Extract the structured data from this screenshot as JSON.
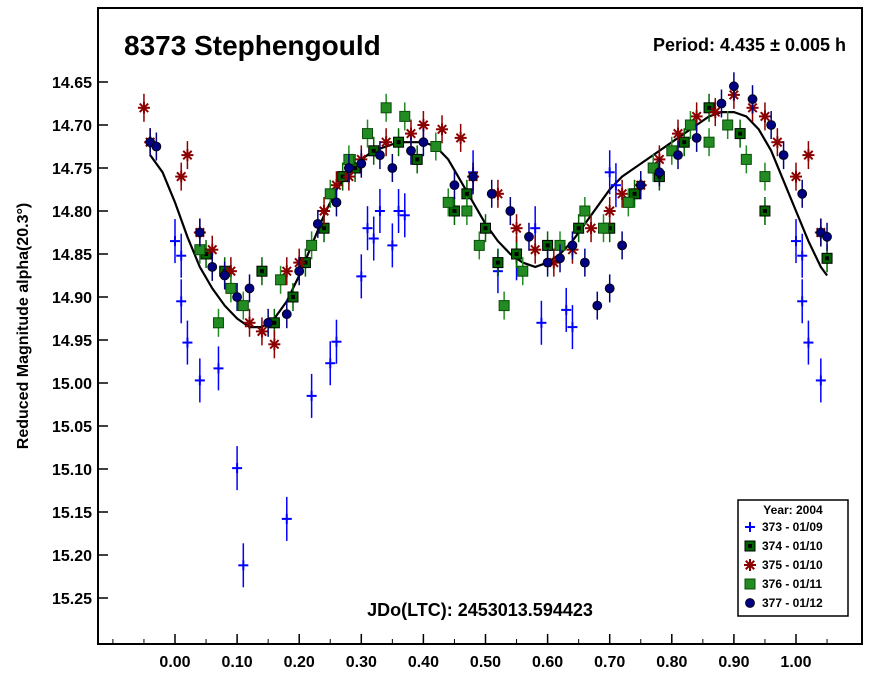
{
  "chart_data": {
    "type": "scatter",
    "title": "8373 Stephengould",
    "period_label": "Period: 4.435 ± 0.005 h",
    "epoch_label": "JDo(LTC): 2453013.594423",
    "ylabel": "Reduced Magnitude alpha(20.3°)",
    "xlabel": "",
    "xlim": [
      -0.12,
      1.1
    ],
    "ylim": [
      15.3,
      14.6
    ],
    "y_inverted": true,
    "x_ticks": [
      "0.00",
      "0.10",
      "0.20",
      "0.30",
      "0.40",
      "0.50",
      "0.60",
      "0.70",
      "0.80",
      "0.90",
      "1.00"
    ],
    "y_ticks": [
      "14.65",
      "14.70",
      "14.75",
      "14.80",
      "14.85",
      "14.90",
      "14.95",
      "15.00",
      "15.05",
      "15.10",
      "15.15",
      "15.20",
      "15.25"
    ],
    "legend": {
      "title": "Year: 2004",
      "position": "bottom-right",
      "entries": [
        {
          "label": "373 - 01/09",
          "color": "#0000ff",
          "marker": "plus"
        },
        {
          "label": "374 - 01/10",
          "color": "#006600",
          "marker": "filled-square-dark"
        },
        {
          "label": "375 - 01/10",
          "color": "#8b0000",
          "marker": "asterisk"
        },
        {
          "label": "376 - 01/11",
          "color": "#228b22",
          "marker": "square"
        },
        {
          "label": "377 - 01/12",
          "color": "#000080",
          "marker": "circle"
        }
      ]
    },
    "series": [
      {
        "name": "373 - 01/09",
        "color": "#0000ff",
        "marker": "plus",
        "points": [
          [
            0.0,
            14.835
          ],
          [
            0.01,
            14.905
          ],
          [
            0.01,
            14.852
          ],
          [
            0.02,
            14.953
          ],
          [
            0.04,
            14.997
          ],
          [
            0.07,
            14.983
          ],
          [
            0.1,
            15.099
          ],
          [
            0.11,
            15.212
          ],
          [
            0.18,
            15.158
          ],
          [
            0.22,
            15.015
          ],
          [
            0.25,
            14.977
          ],
          [
            0.26,
            14.952
          ],
          [
            0.3,
            14.876
          ],
          [
            0.31,
            14.82
          ],
          [
            0.32,
            14.832
          ],
          [
            0.33,
            14.8
          ],
          [
            0.35,
            14.84
          ],
          [
            0.36,
            14.8
          ],
          [
            0.37,
            14.805
          ],
          [
            0.48,
            14.755
          ],
          [
            0.52,
            14.87
          ],
          [
            0.55,
            14.855
          ],
          [
            0.58,
            14.82
          ],
          [
            0.59,
            14.93
          ],
          [
            0.63,
            14.915
          ],
          [
            0.64,
            14.935
          ],
          [
            0.7,
            14.755
          ],
          [
            0.71,
            14.77
          ],
          [
            1.0,
            14.835
          ],
          [
            1.01,
            14.905
          ],
          [
            1.01,
            14.852
          ],
          [
            1.02,
            14.953
          ],
          [
            1.04,
            14.997
          ]
        ]
      },
      {
        "name": "374 - 01/10",
        "color": "#006600",
        "marker": "filled-square-dark",
        "points": [
          [
            0.05,
            14.85
          ],
          [
            0.08,
            14.87
          ],
          [
            0.14,
            14.87
          ],
          [
            0.16,
            14.93
          ],
          [
            0.19,
            14.9
          ],
          [
            0.21,
            14.86
          ],
          [
            0.24,
            14.82
          ],
          [
            0.27,
            14.76
          ],
          [
            0.29,
            14.75
          ],
          [
            0.32,
            14.73
          ],
          [
            0.36,
            14.72
          ],
          [
            0.39,
            14.74
          ],
          [
            0.45,
            14.8
          ],
          [
            0.47,
            14.78
          ],
          [
            0.5,
            14.82
          ],
          [
            0.52,
            14.86
          ],
          [
            0.55,
            14.85
          ],
          [
            0.6,
            14.84
          ],
          [
            0.65,
            14.82
          ],
          [
            0.7,
            14.82
          ],
          [
            0.74,
            14.78
          ],
          [
            0.78,
            14.76
          ],
          [
            0.82,
            14.72
          ],
          [
            0.86,
            14.68
          ],
          [
            0.91,
            14.71
          ],
          [
            0.95,
            14.8
          ],
          [
            1.05,
            14.855
          ]
        ]
      },
      {
        "name": "375 - 01/10",
        "color": "#8b0000",
        "marker": "asterisk",
        "points": [
          [
            -0.05,
            14.68
          ],
          [
            -0.04,
            14.72
          ],
          [
            0.01,
            14.76
          ],
          [
            0.02,
            14.735
          ],
          [
            0.04,
            14.825
          ],
          [
            0.06,
            14.845
          ],
          [
            0.09,
            14.87
          ],
          [
            0.12,
            14.93
          ],
          [
            0.14,
            14.94
          ],
          [
            0.16,
            14.955
          ],
          [
            0.18,
            14.87
          ],
          [
            0.2,
            14.86
          ],
          [
            0.24,
            14.8
          ],
          [
            0.26,
            14.77
          ],
          [
            0.28,
            14.76
          ],
          [
            0.3,
            14.74
          ],
          [
            0.34,
            14.72
          ],
          [
            0.38,
            14.71
          ],
          [
            0.4,
            14.7
          ],
          [
            0.43,
            14.705
          ],
          [
            0.46,
            14.715
          ],
          [
            0.48,
            14.76
          ],
          [
            0.52,
            14.78
          ],
          [
            0.55,
            14.82
          ],
          [
            0.58,
            14.845
          ],
          [
            0.61,
            14.86
          ],
          [
            0.64,
            14.845
          ],
          [
            0.67,
            14.82
          ],
          [
            0.7,
            14.8
          ],
          [
            0.72,
            14.78
          ],
          [
            0.75,
            14.77
          ],
          [
            0.78,
            14.74
          ],
          [
            0.81,
            14.71
          ],
          [
            0.84,
            14.69
          ],
          [
            0.87,
            14.685
          ],
          [
            0.9,
            14.665
          ],
          [
            0.93,
            14.68
          ],
          [
            0.95,
            14.69
          ],
          [
            0.97,
            14.72
          ],
          [
            1.0,
            14.76
          ],
          [
            1.02,
            14.735
          ],
          [
            1.04,
            14.825
          ]
        ]
      },
      {
        "name": "376 - 01/11",
        "color": "#228b22",
        "marker": "square",
        "points": [
          [
            0.04,
            14.845
          ],
          [
            0.07,
            14.93
          ],
          [
            0.09,
            14.89
          ],
          [
            0.11,
            14.91
          ],
          [
            0.17,
            14.88
          ],
          [
            0.22,
            14.84
          ],
          [
            0.25,
            14.78
          ],
          [
            0.28,
            14.74
          ],
          [
            0.31,
            14.71
          ],
          [
            0.34,
            14.68
          ],
          [
            0.37,
            14.69
          ],
          [
            0.42,
            14.725
          ],
          [
            0.44,
            14.79
          ],
          [
            0.47,
            14.8
          ],
          [
            0.49,
            14.84
          ],
          [
            0.53,
            14.91
          ],
          [
            0.56,
            14.87
          ],
          [
            0.62,
            14.84
          ],
          [
            0.66,
            14.8
          ],
          [
            0.69,
            14.82
          ],
          [
            0.73,
            14.79
          ],
          [
            0.77,
            14.75
          ],
          [
            0.8,
            14.73
          ],
          [
            0.83,
            14.7
          ],
          [
            0.86,
            14.72
          ],
          [
            0.89,
            14.7
          ],
          [
            0.92,
            14.74
          ],
          [
            0.95,
            14.76
          ]
        ]
      },
      {
        "name": "377 - 01/12",
        "color": "#000080",
        "marker": "circle",
        "points": [
          [
            -0.04,
            14.72
          ],
          [
            -0.03,
            14.725
          ],
          [
            0.04,
            14.825
          ],
          [
            0.06,
            14.865
          ],
          [
            0.08,
            14.875
          ],
          [
            0.1,
            14.9
          ],
          [
            0.12,
            14.89
          ],
          [
            0.15,
            14.93
          ],
          [
            0.18,
            14.92
          ],
          [
            0.2,
            14.87
          ],
          [
            0.23,
            14.815
          ],
          [
            0.26,
            14.79
          ],
          [
            0.28,
            14.75
          ],
          [
            0.3,
            14.745
          ],
          [
            0.33,
            14.735
          ],
          [
            0.35,
            14.75
          ],
          [
            0.38,
            14.73
          ],
          [
            0.4,
            14.72
          ],
          [
            0.45,
            14.77
          ],
          [
            0.48,
            14.76
          ],
          [
            0.51,
            14.78
          ],
          [
            0.54,
            14.8
          ],
          [
            0.57,
            14.83
          ],
          [
            0.6,
            14.86
          ],
          [
            0.62,
            14.855
          ],
          [
            0.64,
            14.84
          ],
          [
            0.66,
            14.86
          ],
          [
            0.68,
            14.91
          ],
          [
            0.7,
            14.89
          ],
          [
            0.72,
            14.84
          ],
          [
            0.75,
            14.77
          ],
          [
            0.78,
            14.755
          ],
          [
            0.81,
            14.735
          ],
          [
            0.84,
            14.715
          ],
          [
            0.88,
            14.675
          ],
          [
            0.9,
            14.655
          ],
          [
            0.93,
            14.67
          ],
          [
            0.96,
            14.7
          ],
          [
            0.98,
            14.735
          ],
          [
            1.01,
            14.78
          ],
          [
            1.04,
            14.825
          ],
          [
            1.05,
            14.83
          ]
        ]
      }
    ],
    "fit_curve": {
      "color": "#000000",
      "points": [
        [
          -0.04,
          14.735
        ],
        [
          -0.02,
          14.755
        ],
        [
          0.0,
          14.79
        ],
        [
          0.02,
          14.83
        ],
        [
          0.04,
          14.865
        ],
        [
          0.06,
          14.89
        ],
        [
          0.08,
          14.91
        ],
        [
          0.1,
          14.925
        ],
        [
          0.12,
          14.935
        ],
        [
          0.14,
          14.935
        ],
        [
          0.16,
          14.925
        ],
        [
          0.18,
          14.905
        ],
        [
          0.2,
          14.875
        ],
        [
          0.22,
          14.84
        ],
        [
          0.24,
          14.805
        ],
        [
          0.26,
          14.775
        ],
        [
          0.28,
          14.755
        ],
        [
          0.3,
          14.74
        ],
        [
          0.32,
          14.73
        ],
        [
          0.34,
          14.725
        ],
        [
          0.36,
          14.72
        ],
        [
          0.38,
          14.72
        ],
        [
          0.4,
          14.72
        ],
        [
          0.42,
          14.725
        ],
        [
          0.44,
          14.74
        ],
        [
          0.46,
          14.765
        ],
        [
          0.48,
          14.79
        ],
        [
          0.5,
          14.815
        ],
        [
          0.52,
          14.835
        ],
        [
          0.54,
          14.85
        ],
        [
          0.56,
          14.86
        ],
        [
          0.58,
          14.865
        ],
        [
          0.6,
          14.86
        ],
        [
          0.62,
          14.85
        ],
        [
          0.64,
          14.835
        ],
        [
          0.66,
          14.815
        ],
        [
          0.68,
          14.795
        ],
        [
          0.7,
          14.775
        ],
        [
          0.72,
          14.76
        ],
        [
          0.74,
          14.75
        ],
        [
          0.76,
          14.74
        ],
        [
          0.78,
          14.73
        ],
        [
          0.8,
          14.72
        ],
        [
          0.82,
          14.71
        ],
        [
          0.84,
          14.7
        ],
        [
          0.86,
          14.69
        ],
        [
          0.88,
          14.685
        ],
        [
          0.9,
          14.685
        ],
        [
          0.92,
          14.69
        ],
        [
          0.94,
          14.705
        ],
        [
          0.96,
          14.73
        ],
        [
          0.98,
          14.765
        ],
        [
          1.0,
          14.8
        ],
        [
          1.02,
          14.835
        ],
        [
          1.04,
          14.865
        ],
        [
          1.05,
          14.875
        ]
      ]
    }
  }
}
